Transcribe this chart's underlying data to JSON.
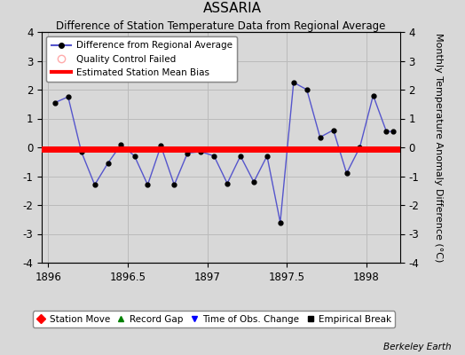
{
  "title": "ASSARIA",
  "subtitle": "Difference of Station Temperature Data from Regional Average",
  "ylabel_right": "Monthly Temperature Anomaly Difference (°C)",
  "background_color": "#d8d8d8",
  "plot_bg_color": "#d8d8d8",
  "xlim": [
    1895.96,
    1898.21
  ],
  "ylim": [
    -4,
    4
  ],
  "yticks": [
    -4,
    -3,
    -2,
    -1,
    0,
    1,
    2,
    3,
    4
  ],
  "xticks": [
    1896,
    1896.5,
    1897,
    1897.5,
    1898
  ],
  "xtick_labels": [
    "1896",
    "1896.5",
    "1897",
    "1897.5",
    "1898"
  ],
  "bias_y": -0.05,
  "line_color": "#5555cc",
  "line_width": 1.0,
  "marker_color": "black",
  "marker_size": 3.5,
  "bias_color": "red",
  "bias_linewidth": 5,
  "grid_color": "#bbbbbb",
  "x_data": [
    1896.042,
    1896.125,
    1896.208,
    1896.292,
    1896.375,
    1896.458,
    1896.542,
    1896.625,
    1896.708,
    1896.792,
    1896.875,
    1896.958,
    1897.042,
    1897.125,
    1897.208,
    1897.292,
    1897.375,
    1897.458,
    1897.542,
    1897.625,
    1897.708,
    1897.792,
    1897.875,
    1897.958,
    1898.042,
    1898.125,
    1898.167
  ],
  "y_data": [
    1.55,
    1.75,
    -0.15,
    -1.3,
    -0.55,
    0.1,
    -0.3,
    -1.3,
    0.05,
    -1.3,
    -0.2,
    -0.15,
    -0.3,
    -1.25,
    -0.3,
    -1.2,
    -0.3,
    -2.6,
    2.25,
    2.0,
    0.35,
    0.6,
    -0.9,
    0.0,
    1.8,
    0.55,
    0.55
  ],
  "berkeley_earth_text": "Berkeley Earth",
  "legend1_label": "Difference from Regional Average",
  "legend2_label": "Quality Control Failed",
  "legend3_label": "Estimated Station Mean Bias",
  "bottom_legend": [
    "Station Move",
    "Record Gap",
    "Time of Obs. Change",
    "Empirical Break"
  ]
}
